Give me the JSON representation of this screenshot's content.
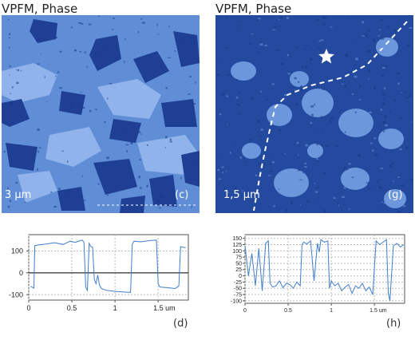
{
  "panels": [
    {
      "title": "VPFM, Phase",
      "scale_label": "3 µm",
      "tag": "(c)",
      "colors": {
        "base": "#5f8ed6",
        "light": "#8fb3ea",
        "dark": "#1e3f94",
        "deep": "#18368a"
      }
    },
    {
      "title": "VPFM, Phase",
      "scale_label": "1,5 µm",
      "tag": "(g)",
      "colors": {
        "base": "#234a9e",
        "light": "#6d97dc",
        "dark": "#1a3b8a",
        "deep": "#163480"
      }
    }
  ],
  "chart_data": [
    {
      "type": "line",
      "tag": "(d)",
      "title": "",
      "xlabel": "",
      "ylabel": "",
      "x_tick_labels": [
        "0",
        "0.5",
        "1",
        "1.5 um"
      ],
      "y_tick_labels": [
        "100",
        "0",
        "-100"
      ],
      "x_ticks": [
        0,
        0.5,
        1,
        1.5
      ],
      "y_ticks": [
        100,
        0,
        -100
      ],
      "xlim": [
        0,
        1.85
      ],
      "ylim": [
        -125,
        175
      ],
      "grid": true,
      "zero_line": true,
      "line_color": "#3f7fcc",
      "series": [
        {
          "x": [
            0.02,
            0.06,
            0.07,
            0.12,
            0.2,
            0.3,
            0.4,
            0.48,
            0.54,
            0.6,
            0.62,
            0.64,
            0.66,
            0.68,
            0.7,
            0.72,
            0.74,
            0.76,
            0.78,
            0.8,
            0.82,
            0.84,
            0.86,
            0.9,
            1.0,
            1.1,
            1.18,
            1.2,
            1.22,
            1.3,
            1.4,
            1.48,
            1.5,
            1.52,
            1.6,
            1.7,
            1.74,
            1.76,
            1.78,
            1.82
          ],
          "y": [
            -62,
            -70,
            125,
            128,
            132,
            138,
            130,
            145,
            140,
            148,
            150,
            140,
            -65,
            -80,
            135,
            120,
            118,
            -30,
            -50,
            -10,
            -55,
            -70,
            -75,
            -80,
            -85,
            -88,
            -90,
            130,
            145,
            142,
            148,
            150,
            -50,
            -65,
            -68,
            -72,
            -60,
            120,
            118,
            115
          ]
        }
      ]
    },
    {
      "type": "line",
      "tag": "(h)",
      "title": "",
      "xlabel": "",
      "ylabel": "",
      "x_tick_labels": [
        "0",
        "0.5",
        "1",
        "1.5 um"
      ],
      "y_tick_labels": [
        "150",
        "125",
        "100",
        "75",
        "50",
        "25",
        "0",
        "-25",
        "-50",
        "-75",
        "-100"
      ],
      "x_ticks": [
        0,
        0.5,
        1,
        1.5
      ],
      "y_ticks": [
        150,
        125,
        100,
        75,
        50,
        25,
        0,
        -25,
        -50,
        -75,
        -100
      ],
      "xlim": [
        0,
        1.85
      ],
      "ylim": [
        -110,
        165
      ],
      "grid": true,
      "zero_line": false,
      "line_color": "#3f7fcc",
      "series": [
        {
          "x": [
            0.0,
            0.04,
            0.08,
            0.12,
            0.16,
            0.2,
            0.24,
            0.27,
            0.29,
            0.32,
            0.36,
            0.4,
            0.44,
            0.48,
            0.52,
            0.56,
            0.6,
            0.64,
            0.66,
            0.68,
            0.72,
            0.76,
            0.8,
            0.84,
            0.86,
            0.88,
            0.92,
            0.96,
            0.98,
            1.0,
            1.04,
            1.08,
            1.12,
            1.16,
            1.2,
            1.24,
            1.28,
            1.32,
            1.36,
            1.4,
            1.44,
            1.48,
            1.52,
            1.56,
            1.6,
            1.64,
            1.66,
            1.68,
            1.72,
            1.76,
            1.8,
            1.84
          ],
          "y": [
            120,
            0,
            90,
            -40,
            110,
            -60,
            130,
            140,
            -30,
            -45,
            -40,
            -20,
            -48,
            -30,
            -35,
            -50,
            -25,
            -40,
            125,
            135,
            128,
            140,
            -20,
            130,
            95,
            145,
            135,
            140,
            -50,
            -20,
            -40,
            -30,
            -60,
            -45,
            -35,
            -70,
            -40,
            -50,
            -30,
            -60,
            -45,
            -75,
            140,
            125,
            135,
            145,
            -70,
            -100,
            120,
            130,
            115,
            125
          ]
        }
      ]
    }
  ]
}
